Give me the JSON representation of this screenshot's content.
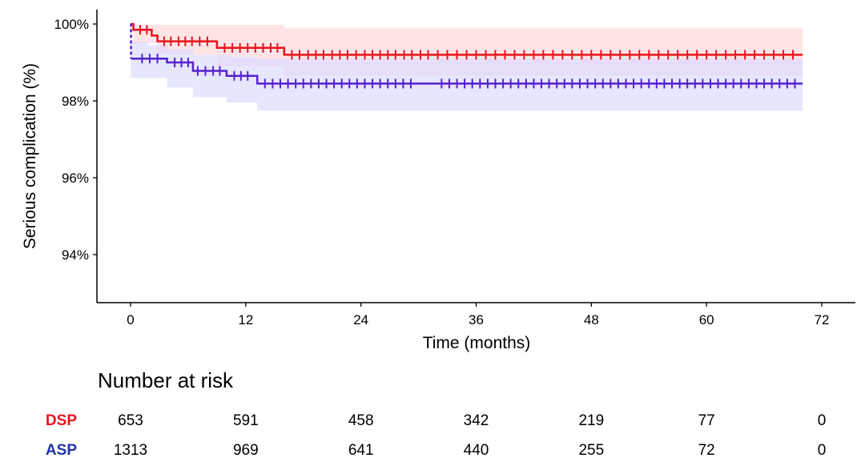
{
  "chart_data": {
    "type": "line",
    "subtype": "kaplan-meier",
    "xlabel": "Time (months)",
    "ylabel": "Serious complication (%)",
    "xlim": [
      -3.5,
      75
    ],
    "ylim": [
      92.8,
      100.4
    ],
    "x_ticks": [
      0,
      12,
      24,
      36,
      48,
      60,
      72
    ],
    "y_ticks": [
      94,
      96,
      98,
      100
    ],
    "y_tick_labels": [
      "94%",
      "96%",
      "98%",
      "100%"
    ],
    "grid": false,
    "series": [
      {
        "name": "DSP",
        "color": "#e8141c",
        "band_color": "#ffd9dc",
        "line_style": "solid",
        "steps": [
          [
            0,
            100
          ],
          [
            0.3,
            99.85
          ],
          [
            2.2,
            99.7
          ],
          [
            2.8,
            99.55
          ],
          [
            9.0,
            99.38
          ],
          [
            16.0,
            99.2
          ],
          [
            70,
            99.2
          ]
        ],
        "ci_steps": [
          [
            0,
            100,
            100
          ],
          [
            0.3,
            99.98,
            99.5
          ],
          [
            2.8,
            99.98,
            99.2
          ],
          [
            9.0,
            99.98,
            98.9
          ],
          [
            16.0,
            99.9,
            98.65
          ],
          [
            70,
            99.9,
            98.65
          ]
        ],
        "censor_times": [
          1,
          1.7,
          3.5,
          4.2,
          5,
          5.7,
          6.4,
          7.2,
          8,
          9.8,
          10.6,
          11.4,
          12.2,
          13,
          13.8,
          14.6,
          15.3,
          16.8,
          17.6,
          18.5,
          19.3,
          20.1,
          21,
          21.8,
          22.6,
          23.5,
          24.4,
          25.2,
          26,
          26.8,
          27.6,
          28.5,
          29.3,
          30.2,
          31,
          32,
          33,
          34,
          35,
          36,
          37,
          38,
          39,
          40,
          41,
          42,
          43,
          44,
          45,
          46,
          47,
          48,
          49,
          50,
          51,
          52,
          53,
          54,
          55,
          56,
          57,
          58,
          59,
          60,
          61,
          62,
          63,
          64,
          65,
          66,
          67,
          68,
          69
        ]
      },
      {
        "name": "ASP",
        "color": "#5522cc",
        "band_color": "#dcdcff",
        "line_style": "dashed-then-solid",
        "steps": [
          [
            0,
            100
          ],
          [
            0.05,
            99.1
          ],
          [
            3.8,
            99.0
          ],
          [
            6.5,
            98.78
          ],
          [
            10.0,
            98.65
          ],
          [
            13.2,
            98.45
          ],
          [
            70,
            98.45
          ]
        ],
        "ci_steps": [
          [
            0,
            100,
            100
          ],
          [
            0.05,
            99.55,
            98.6
          ],
          [
            1.8,
            99.45,
            98.6
          ],
          [
            3.8,
            99.35,
            98.35
          ],
          [
            6.5,
            99.2,
            98.1
          ],
          [
            10.0,
            99.15,
            97.95
          ],
          [
            13.2,
            99.1,
            97.75
          ],
          [
            70,
            99.1,
            97.75
          ]
        ],
        "censor_times": [
          1.2,
          2,
          2.8,
          4.6,
          5.3,
          6,
          7,
          7.8,
          8.6,
          9.3,
          10.8,
          11.5,
          12.2,
          14,
          14.8,
          15.6,
          16.4,
          17.2,
          18,
          18.8,
          19.6,
          20.4,
          21.2,
          22,
          22.8,
          23.6,
          24.4,
          25.2,
          26,
          26.8,
          27.6,
          28.4,
          29.2,
          32.4,
          33.2,
          34,
          34.8,
          35.6,
          36.4,
          37.2,
          38,
          38.8,
          39.6,
          40.4,
          41.2,
          42,
          42.8,
          43.6,
          44.4,
          45.2,
          46,
          46.8,
          47.6,
          48.4,
          49.2,
          50,
          50.8,
          51.6,
          52.4,
          53.2,
          54,
          54.8,
          55.6,
          56.4,
          57.2,
          58,
          58.8,
          59.6,
          60.4,
          61.2,
          62,
          62.8,
          63.6,
          64.4,
          65.2,
          66,
          66.8,
          67.6,
          68.4,
          69.2
        ]
      }
    ],
    "risk_table": {
      "title": "Number at risk",
      "times": [
        0,
        12,
        24,
        36,
        48,
        60,
        72
      ],
      "rows": [
        {
          "label": "DSP",
          "color": "#e8141c",
          "values": [
            "653",
            "591",
            "458",
            "342",
            "219",
            "77",
            "0"
          ]
        },
        {
          "label": "ASP",
          "color": "#2233aa",
          "values": [
            "1313",
            "969",
            "641",
            "440",
            "255",
            "72",
            "0"
          ]
        }
      ]
    }
  }
}
